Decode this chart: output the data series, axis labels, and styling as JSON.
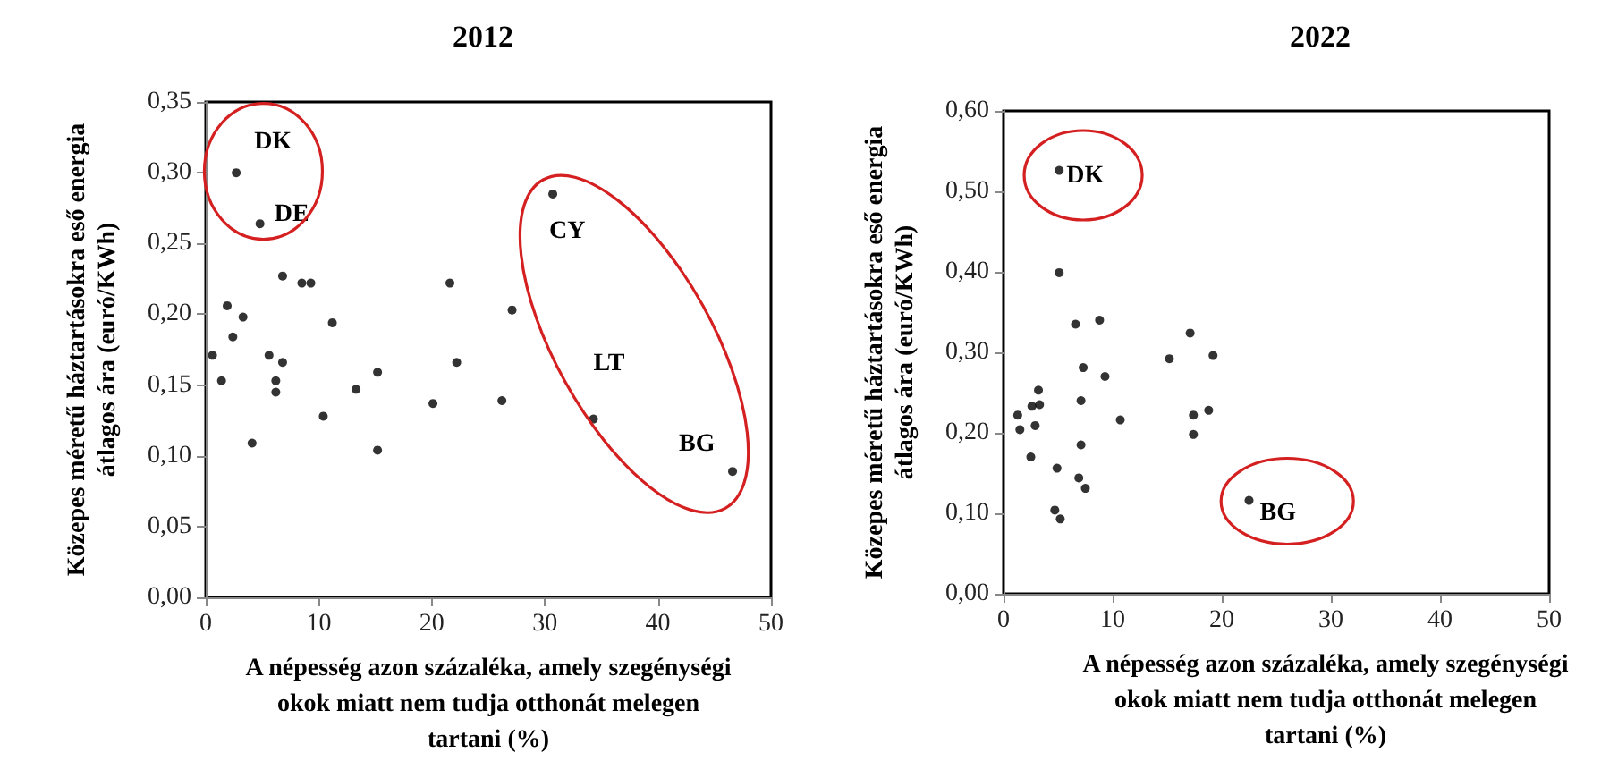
{
  "chart_data": [
    {
      "type": "scatter",
      "title": "2012",
      "xlabel": "A népesség azon százaléka, amely szegénységi okok miatt nem tudja otthonát melegen tartani (%)",
      "ylabel": "Közepes méretű háztartásokra eső energia átlagos ára (euró/KWh)",
      "x": [
        2.7,
        4.8,
        6.8,
        8.5,
        9.3,
        1.9,
        3.3,
        2.4,
        11.2,
        0.6,
        5.6,
        6.8,
        1.4,
        6.2,
        6.2,
        4.1,
        10.4,
        13.3,
        15.2,
        15.2,
        20.1,
        21.6,
        22.2,
        26.2,
        30.7,
        27.1,
        34.3,
        46.6
      ],
      "series": [
        {
          "color": "#000000",
          "values": [
            0.3,
            0.264,
            0.227,
            0.222,
            0.222,
            0.206,
            0.198,
            0.184,
            0.194,
            0.171,
            0.171,
            0.166,
            0.153,
            0.153,
            0.145,
            0.109,
            0.128,
            0.147,
            0.159,
            0.104,
            0.137,
            0.222,
            0.166,
            0.139,
            0.285,
            0.203,
            0.126,
            0.089
          ]
        }
      ],
      "annotations": [
        {
          "text": "DK",
          "x": 2.7,
          "y": 0.3
        },
        {
          "text": "DE",
          "x": 4.8,
          "y": 0.264
        },
        {
          "text": "CY",
          "x": 30.7,
          "y": 0.285
        },
        {
          "text": "LT",
          "x": 34.3,
          "y": 0.126
        },
        {
          "text": "BG",
          "x": 46.6,
          "y": 0.089
        }
      ],
      "xlim": [
        0,
        50
      ],
      "xticks": [
        0,
        10,
        20,
        30,
        40,
        50
      ],
      "ylim": [
        0,
        0.35
      ],
      "yticks": [
        {
          "value": 0,
          "label": "0,00"
        },
        {
          "value": 0.05,
          "label": "0,05"
        },
        {
          "value": 0.1,
          "label": "0,10"
        },
        {
          "value": 0.15,
          "label": "0,15"
        },
        {
          "value": 0.2,
          "label": "0,20"
        },
        {
          "value": 0.25,
          "label": "0,25"
        },
        {
          "value": 0.3,
          "label": "0,30"
        },
        {
          "value": 0.35,
          "label": "0,35"
        }
      ],
      "marker": "circle"
    },
    {
      "type": "scatter",
      "title": "2022",
      "xlabel": "A népesség azon százaléka, amely szegénységi okok miatt nem tudja otthonát melegen tartani (%)",
      "ylabel": "Közepes méretű háztartásokra eső energia átlagos ára (euró/KWh)",
      "x": [
        5.1,
        5.1,
        6.6,
        8.8,
        17.1,
        15.2,
        19.2,
        7.3,
        9.3,
        3.2,
        2.6,
        3.3,
        7.1,
        1.3,
        1.5,
        2.9,
        10.7,
        17.4,
        18.8,
        17.4,
        2.5,
        7.1,
        4.9,
        6.9,
        7.5,
        4.7,
        5.2,
        22.5
      ],
      "series": [
        {
          "color": "#000000",
          "values": [
            0.526,
            0.399,
            0.335,
            0.34,
            0.324,
            0.292,
            0.296,
            0.281,
            0.27,
            0.253,
            0.233,
            0.235,
            0.24,
            0.222,
            0.204,
            0.209,
            0.216,
            0.222,
            0.228,
            0.198,
            0.17,
            0.185,
            0.156,
            0.144,
            0.131,
            0.104,
            0.093,
            0.116
          ]
        }
      ],
      "annotations": [
        {
          "text": "DK",
          "x": 5.1,
          "y": 0.526
        },
        {
          "text": "BG",
          "x": 22.5,
          "y": 0.116
        }
      ],
      "xlim": [
        0,
        50
      ],
      "xticks": [
        0,
        10,
        20,
        30,
        40,
        50
      ],
      "ylim": [
        0,
        0.6
      ],
      "yticks": [
        {
          "value": 0,
          "label": "0,00"
        },
        {
          "value": 0.1,
          "label": "0,10"
        },
        {
          "value": 0.2,
          "label": "0,20"
        },
        {
          "value": 0.3,
          "label": "0,30"
        },
        {
          "value": 0.4,
          "label": "0,40"
        },
        {
          "value": 0.5,
          "label": "0,50"
        },
        {
          "value": 0.6,
          "label": "0,60"
        }
      ],
      "marker": "circle"
    }
  ]
}
